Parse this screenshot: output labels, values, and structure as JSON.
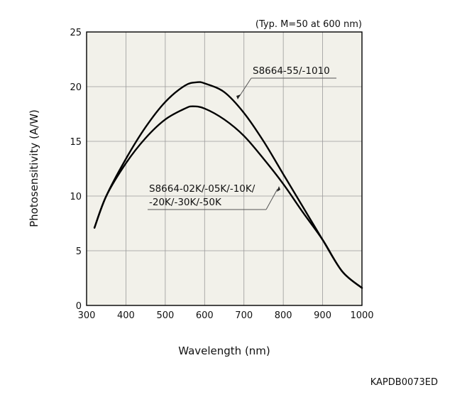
{
  "chart_data": {
    "type": "line",
    "title": "",
    "condition_note": "(Typ. M=50 at 600 nm)",
    "xlabel": "Wavelength (nm)",
    "ylabel": "Photosensitivity (A/W)",
    "xlim": [
      300,
      1000
    ],
    "ylim": [
      0,
      25
    ],
    "x_ticks": [
      300,
      400,
      500,
      600,
      700,
      800,
      900,
      1000
    ],
    "y_ticks": [
      0,
      5,
      10,
      15,
      20,
      25
    ],
    "x_tick_labels": [
      "300",
      "400",
      "500",
      "600",
      "700",
      "800",
      "900",
      "1000"
    ],
    "y_tick_labels": [
      "0",
      "5",
      "10",
      "15",
      "20",
      "25"
    ],
    "grid": true,
    "plot_background": "#f2f1ea",
    "line_color": "#000000",
    "series": [
      {
        "name": "S8664-55/-1010",
        "x": [
          320,
          350,
          400,
          450,
          500,
          550,
          580,
          600,
          650,
          700,
          750,
          800,
          850,
          900,
          950,
          1000
        ],
        "y": [
          7.1,
          10.0,
          13.4,
          16.3,
          18.6,
          20.1,
          20.4,
          20.3,
          19.5,
          17.6,
          15.0,
          12.0,
          9.0,
          6.0,
          3.1,
          1.6
        ]
      },
      {
        "name": "S8664-02K/-05K/-10K/-20K/-30K/-50K",
        "x": [
          320,
          350,
          400,
          450,
          500,
          550,
          570,
          600,
          650,
          700,
          750,
          800,
          850,
          900,
          950,
          1000
        ],
        "y": [
          7.1,
          10.0,
          13.0,
          15.3,
          17.0,
          18.0,
          18.2,
          18.0,
          17.0,
          15.5,
          13.4,
          11.1,
          8.5,
          6.0,
          3.1,
          1.6
        ]
      }
    ],
    "annotations": [
      {
        "lines": [
          "S8664-55/-1010"
        ],
        "series_index": 0
      },
      {
        "lines": [
          "S8664-02K/-05K/-10K/",
          "-20K/-30K/-50K"
        ],
        "series_index": 1
      }
    ]
  },
  "figure_code": "KAPDB0073ED"
}
